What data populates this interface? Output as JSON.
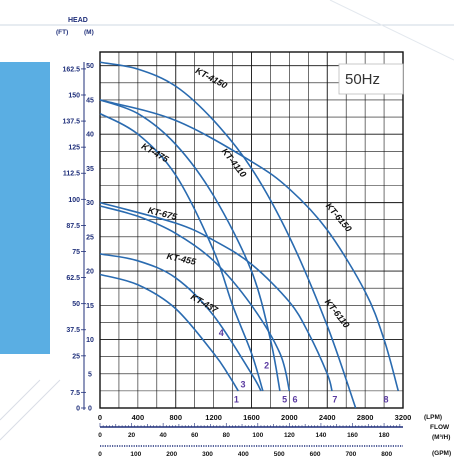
{
  "chart_data": {
    "type": "line",
    "frequency_label": "50Hz",
    "y_title": "HEAD",
    "y_units_left": "(FT)",
    "y_units_right": "(M)",
    "x_unit_lpm": "(LPM)",
    "x_title": "FLOW",
    "x_unit_m3h": "(M³/H)",
    "x_unit_gpm": "(GPM)",
    "xlim": [
      0,
      3200
    ],
    "ylim": [
      0,
      52
    ],
    "grid": true,
    "y_ticks_m": [
      0,
      5,
      10,
      15,
      20,
      25,
      30,
      35,
      40,
      45,
      50
    ],
    "y_ticks_ft": [
      "0",
      "7.5",
      "25",
      "37.5",
      "50",
      "62.5",
      "75",
      "87.5",
      "100",
      "112.5",
      "125",
      "137.5",
      "150",
      "162.5"
    ],
    "x_ticks_lpm": [
      "0",
      "400",
      "800",
      "1200",
      "1600",
      "2000",
      "2400",
      "2800",
      "3200"
    ],
    "x_ticks_m3h": [
      "0",
      "20",
      "40",
      "60",
      "80",
      "100",
      "120",
      "140",
      "160",
      "180"
    ],
    "x_ticks_gpm": [
      "0",
      "100",
      "200",
      "300",
      "400",
      "500",
      "600",
      "700",
      "800"
    ],
    "series": [
      {
        "name": "KT-4150",
        "x": [
          0,
          400,
          800,
          1200,
          1600,
          2000,
          2400,
          2700
        ],
        "y": [
          50.5,
          49.5,
          47,
          42,
          35,
          25,
          12,
          0
        ]
      },
      {
        "name": "KT-6150",
        "x": [
          0,
          800,
          1600,
          2000,
          2400,
          2800,
          3000,
          3150
        ],
        "y": [
          45,
          42,
          36,
          32,
          26,
          17,
          10,
          2.5
        ]
      },
      {
        "name": "KT-6110",
        "x": [
          0,
          800,
          1200,
          1600,
          2000,
          2200,
          2400,
          2450
        ],
        "y": [
          30,
          27,
          24.5,
          21,
          15.5,
          11,
          5,
          2.5
        ]
      },
      {
        "name": "KT-4110",
        "x": [
          0,
          400,
          800,
          1200,
          1600,
          1800,
          1900
        ],
        "y": [
          45,
          43,
          38.5,
          31,
          20,
          10,
          2.5
        ]
      },
      {
        "name": "KT-475",
        "x": [
          0,
          400,
          800,
          1200,
          1400,
          1600,
          1720
        ],
        "y": [
          43,
          40,
          34,
          23,
          15,
          8,
          2.5
        ]
      },
      {
        "name": "KT-675",
        "x": [
          0,
          400,
          800,
          1200,
          1600,
          1900,
          2000
        ],
        "y": [
          29.5,
          28,
          25.5,
          21.5,
          15,
          8,
          2.5
        ]
      },
      {
        "name": "KT-455",
        "x": [
          0,
          400,
          800,
          1200,
          1600,
          1700
        ],
        "y": [
          22.5,
          21.5,
          19,
          13.5,
          5,
          2.5
        ]
      },
      {
        "name": "KT-437",
        "x": [
          0,
          400,
          800,
          1200,
          1350,
          1460
        ],
        "y": [
          19.5,
          18,
          14.5,
          8,
          5,
          2.5
        ]
      }
    ],
    "curve_markers": [
      "1",
      "2",
      "3",
      "4",
      "5",
      "6",
      "7",
      "8"
    ]
  }
}
